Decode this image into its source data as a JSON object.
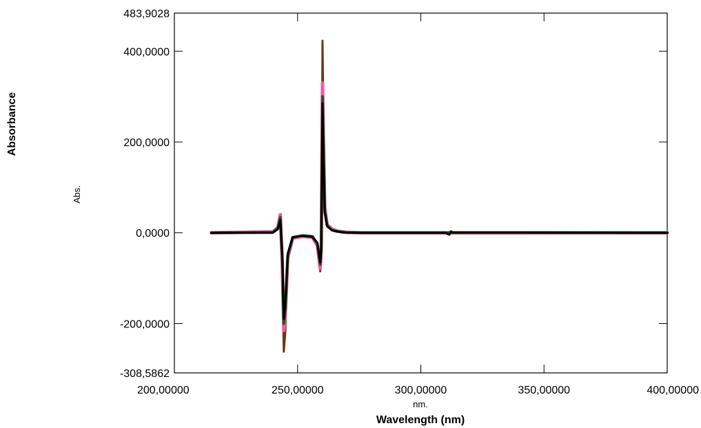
{
  "chart_data": {
    "type": "line",
    "title": "",
    "xlabel": "Wavelength (nm)",
    "xunit": "nm.",
    "ylabel": "Absorbance",
    "yunit": "Abs.",
    "xlim": [
      200.0,
      400.0
    ],
    "ylim": [
      -308.5862,
      483.9028
    ],
    "x_ticks": [
      {
        "value": 200,
        "label": "200,00000"
      },
      {
        "value": 250,
        "label": "250,00000"
      },
      {
        "value": 300,
        "label": "300,00000"
      },
      {
        "value": 350,
        "label": "350,00000"
      },
      {
        "value": 400,
        "label": "400,00000"
      }
    ],
    "y_ticks": [
      {
        "value": 483.9028,
        "label": "483,9028"
      },
      {
        "value": 400,
        "label": "400,0000"
      },
      {
        "value": 200,
        "label": "200,0000"
      },
      {
        "value": 0,
        "label": "0,0000"
      },
      {
        "value": -200,
        "label": "-200,0000"
      },
      {
        "value": -308.5862,
        "label": "-308,5862"
      }
    ],
    "grid": false,
    "legend": "none",
    "series": [
      {
        "color": "#6b3a12",
        "width": 3,
        "x": [
          215,
          240,
          242,
          243,
          243.8,
          244.4,
          245,
          246,
          248,
          252,
          256,
          258,
          259.2,
          259.6,
          260.1,
          260.6,
          261,
          262,
          264,
          266,
          268,
          270,
          276,
          310,
          311,
          311.6,
          312.2,
          313,
          400
        ],
        "y": [
          0,
          2,
          12,
          40,
          -80,
          -262,
          -220,
          -60,
          -12,
          -8,
          -10,
          -30,
          -85,
          -40,
          423,
          200,
          60,
          20,
          8,
          4,
          2,
          1,
          0,
          0,
          -3,
          -4,
          3,
          1,
          0
        ]
      },
      {
        "color": "#f25aa8",
        "width": 5,
        "x": [
          215,
          240,
          242,
          243,
          243.8,
          244.4,
          245,
          246,
          248,
          252,
          256,
          258,
          259.2,
          259.6,
          260.1,
          260.6,
          261,
          262,
          264,
          266,
          268,
          270,
          276,
          310,
          400
        ],
        "y": [
          0,
          2,
          12,
          40,
          -70,
          -215,
          -180,
          -55,
          -12,
          -8,
          -10,
          -28,
          -78,
          -38,
          330,
          180,
          55,
          18,
          8,
          4,
          2,
          1,
          0,
          0,
          0
        ]
      },
      {
        "color": "#1f5a1f",
        "width": 4,
        "x": [
          215,
          240,
          242,
          243,
          243.8,
          244.4,
          245,
          246,
          248,
          252,
          256,
          258,
          259.2,
          259.6,
          260.1,
          260.6,
          261,
          262,
          264,
          266,
          268,
          270,
          276,
          310,
          400
        ],
        "y": [
          0,
          1,
          10,
          34,
          -60,
          -200,
          -170,
          -50,
          -10,
          -6,
          -8,
          -24,
          -70,
          -34,
          300,
          160,
          50,
          16,
          6,
          3,
          2,
          1,
          0,
          0,
          0
        ]
      },
      {
        "color": "#000000",
        "width": 3,
        "x": [
          215,
          240,
          242,
          243,
          243.8,
          244.4,
          245,
          246,
          248,
          252,
          256,
          258,
          259.2,
          259.6,
          260.1,
          260.6,
          261,
          262,
          264,
          266,
          268,
          270,
          276,
          310,
          311,
          311.6,
          312.2,
          313,
          400
        ],
        "y": [
          0,
          0,
          8,
          28,
          -50,
          -190,
          -160,
          -45,
          -10,
          -7,
          -9,
          -22,
          -65,
          -32,
          285,
          150,
          45,
          14,
          5,
          3,
          1,
          0,
          0,
          0,
          -3,
          -4,
          3,
          1,
          0
        ]
      }
    ]
  }
}
